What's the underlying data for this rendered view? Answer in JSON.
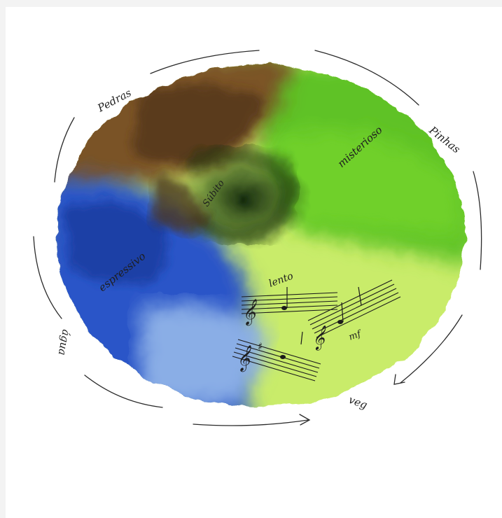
{
  "painting": {
    "labels": {
      "pedras": "Pedras",
      "pinhas": "Pinhas",
      "agua": "água",
      "veg": "veg",
      "misterioso": "misterioso",
      "subito": "Súbito",
      "espressivo": "espressivo",
      "lento": "lento",
      "mf": "mf"
    },
    "colors": {
      "brown": "#7a5228",
      "dark_brown": "#4a3218",
      "green": "#66c22a",
      "light_green": "#c9ec6a",
      "blue": "#2a55c8",
      "light_blue": "#8aaee6",
      "dark_center": "#0e2a0c"
    }
  }
}
